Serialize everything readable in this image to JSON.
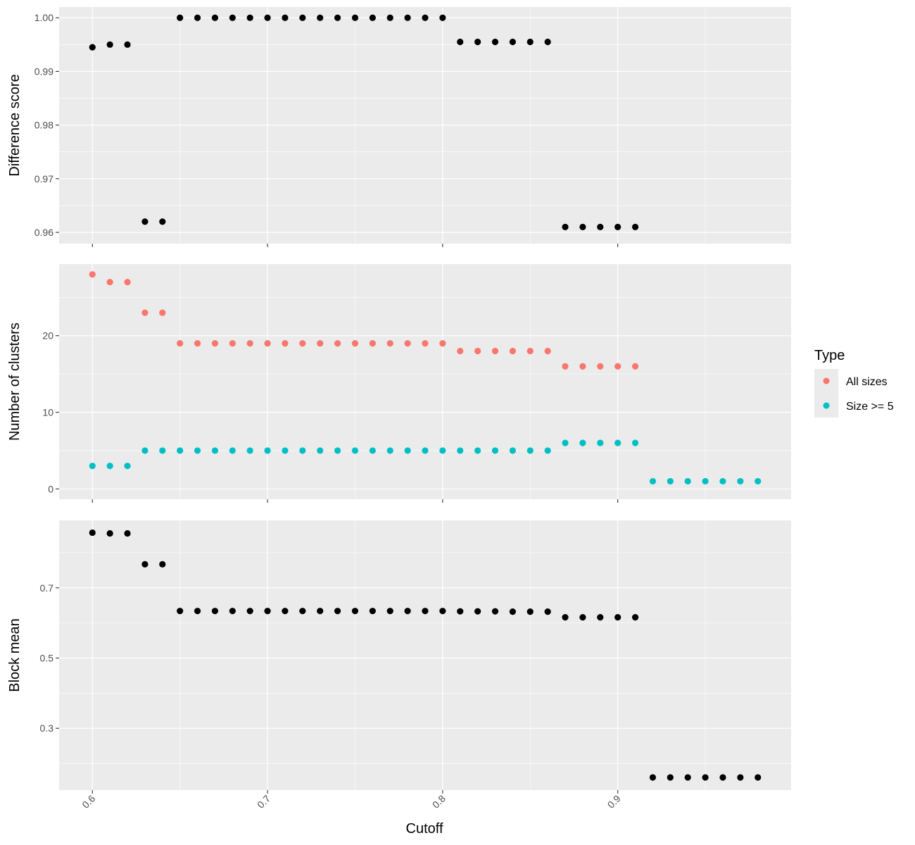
{
  "chart_data": {
    "type": "scatter",
    "xlabel": "Cutoff",
    "x_ticks": [
      0.6,
      0.7,
      0.8,
      0.9
    ],
    "x_tick_labels": [
      "0.6",
      "0.7",
      "0.8",
      "0.9"
    ],
    "xlim": [
      0.581,
      0.999
    ],
    "x": [
      0.6,
      0.61,
      0.62,
      0.63,
      0.64,
      0.65,
      0.66,
      0.67,
      0.68,
      0.69,
      0.7,
      0.71,
      0.72,
      0.73,
      0.74,
      0.75,
      0.76,
      0.77,
      0.78,
      0.79,
      0.8,
      0.81,
      0.82,
      0.83,
      0.84,
      0.85,
      0.86,
      0.87,
      0.88,
      0.89,
      0.9,
      0.91,
      0.92,
      0.93,
      0.94,
      0.95,
      0.96,
      0.97,
      0.98
    ],
    "colors": {
      "all_sizes": "#F8766D",
      "size5": "#00BFC4",
      "black": "#000000",
      "panel_bg": "#EBEBEB",
      "grid": "#FFFFFF"
    },
    "legend": {
      "title": "Type",
      "position": "right",
      "entries": [
        {
          "label": "All sizes",
          "color": "#F8766D"
        },
        {
          "label": "Size >= 5",
          "color": "#00BFC4"
        }
      ]
    },
    "panels": [
      {
        "ylabel": "Difference score",
        "ylim": [
          0.9579,
          1.002
        ],
        "y_ticks": [
          0.96,
          0.97,
          0.98,
          0.99,
          1.0
        ],
        "y_tick_labels": [
          "0.96",
          "0.97",
          "0.98",
          "0.99",
          "1.00"
        ],
        "series": [
          {
            "color": "#000000",
            "values": [
              0.9945,
              0.995,
              0.995,
              0.962,
              0.962,
              1.0,
              1.0,
              1.0,
              1.0,
              1.0,
              1.0,
              1.0,
              1.0,
              1.0,
              1.0,
              1.0,
              1.0,
              1.0,
              1.0,
              1.0,
              1.0,
              0.9955,
              0.9955,
              0.9955,
              0.9955,
              0.9955,
              0.9955,
              0.961,
              0.961,
              0.961,
              0.961,
              0.961,
              null,
              null,
              null,
              null,
              null,
              null,
              null
            ]
          }
        ]
      },
      {
        "ylabel": "Number of clusters",
        "ylim": [
          -1.35,
          29.35
        ],
        "y_ticks": [
          0,
          10,
          20
        ],
        "y_tick_labels": [
          "0",
          "10",
          "20"
        ],
        "series": [
          {
            "name": "All sizes",
            "color": "#F8766D",
            "values": [
              28,
              27,
              27,
              23,
              23,
              19,
              19,
              19,
              19,
              19,
              19,
              19,
              19,
              19,
              19,
              19,
              19,
              19,
              19,
              19,
              19,
              18,
              18,
              18,
              18,
              18,
              18,
              16,
              16,
              16,
              16,
              16,
              null,
              null,
              null,
              null,
              null,
              null,
              null
            ]
          },
          {
            "name": "Size >= 5",
            "color": "#00BFC4",
            "values": [
              3,
              3,
              3,
              5,
              5,
              5,
              5,
              5,
              5,
              5,
              5,
              5,
              5,
              5,
              5,
              5,
              5,
              5,
              5,
              5,
              5,
              5,
              5,
              5,
              5,
              5,
              5,
              6,
              6,
              6,
              6,
              6,
              1,
              1,
              1,
              1,
              1,
              1,
              1
            ]
          }
        ]
      },
      {
        "ylabel": "Block mean",
        "ylim": [
          0.124,
          0.892
        ],
        "y_ticks": [
          0.3,
          0.5,
          0.7
        ],
        "y_tick_labels": [
          "0.3",
          "0.5",
          "0.7"
        ],
        "series": [
          {
            "color": "#000000",
            "values": [
              0.857,
              0.855,
              0.855,
              0.767,
              0.767,
              0.634,
              0.634,
              0.634,
              0.634,
              0.634,
              0.634,
              0.634,
              0.634,
              0.634,
              0.634,
              0.634,
              0.634,
              0.634,
              0.634,
              0.634,
              0.634,
              0.633,
              0.633,
              0.633,
              0.632,
              0.632,
              0.632,
              0.616,
              0.616,
              0.616,
              0.616,
              0.616,
              0.16,
              0.16,
              0.16,
              0.16,
              0.16,
              0.16,
              0.16
            ]
          }
        ]
      }
    ]
  }
}
